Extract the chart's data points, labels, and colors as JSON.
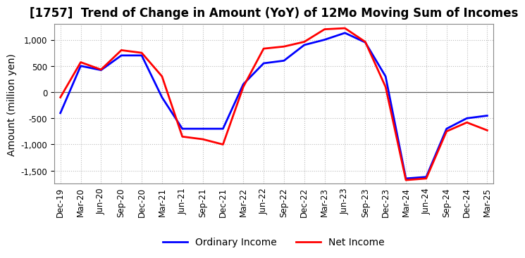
{
  "title": "[1757]  Trend of Change in Amount (YoY) of 12Mo Moving Sum of Incomes",
  "ylabel": "Amount (million yen)",
  "legend": [
    "Ordinary Income",
    "Net Income"
  ],
  "line_colors": [
    "#0000ff",
    "#ff0000"
  ],
  "x_labels": [
    "Dec-19",
    "Mar-20",
    "Jun-20",
    "Sep-20",
    "Dec-20",
    "Mar-21",
    "Jun-21",
    "Sep-21",
    "Dec-21",
    "Mar-22",
    "Jun-22",
    "Sep-22",
    "Dec-22",
    "Mar-23",
    "Jun-23",
    "Sep-23",
    "Dec-23",
    "Mar-24",
    "Jun-24",
    "Sep-24",
    "Dec-24",
    "Mar-25"
  ],
  "ordinary_income": [
    -400,
    500,
    420,
    700,
    700,
    -100,
    -700,
    -700,
    -700,
    150,
    550,
    600,
    900,
    1000,
    1130,
    950,
    300,
    -1650,
    -1620,
    -700,
    -500,
    -450
  ],
  "net_income": [
    -100,
    570,
    430,
    800,
    750,
    300,
    -850,
    -900,
    -1000,
    100,
    830,
    870,
    960,
    1200,
    1220,
    960,
    100,
    -1680,
    -1650,
    -750,
    -580,
    -730
  ],
  "ylim": [
    -1750,
    1300
  ],
  "yticks": [
    -1500,
    -1000,
    -500,
    0,
    500,
    1000
  ],
  "background_color": "#ffffff",
  "plot_bg_color": "#ffffff",
  "grid_color": "#bbbbbb",
  "title_fontsize": 12,
  "axis_fontsize": 10,
  "tick_fontsize": 8.5,
  "linewidth": 2.0
}
